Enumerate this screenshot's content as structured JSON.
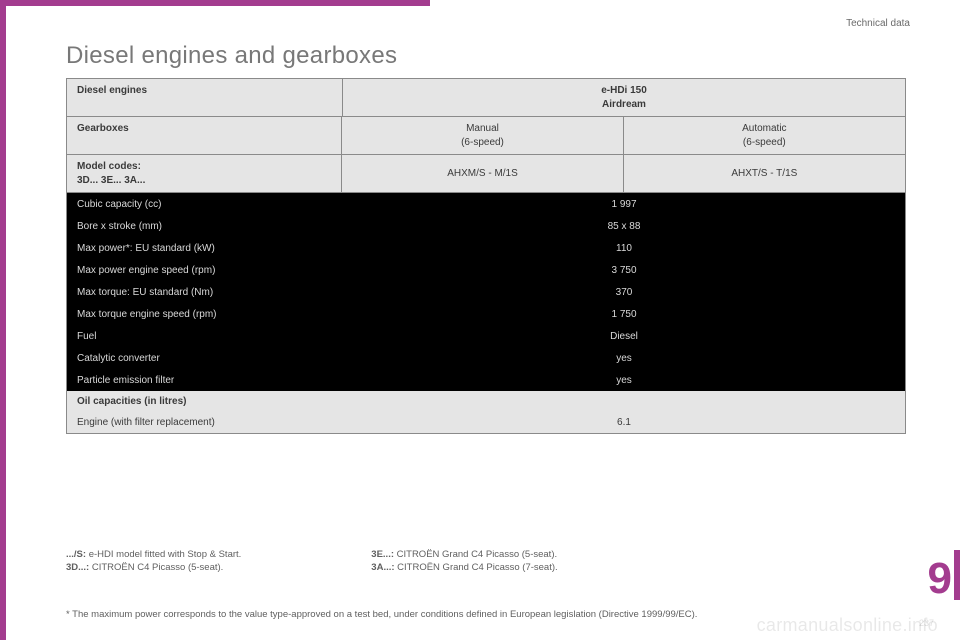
{
  "section_label": "Technical data",
  "title": "Diesel engines and gearboxes",
  "header": {
    "col1": "Diesel engines",
    "engine": "e-HDi 150",
    "engine_sub": "Airdream",
    "gearboxes": "Gearboxes",
    "gb_manual": "Manual",
    "gb_manual_sub": "(6-speed)",
    "gb_auto": "Automatic",
    "gb_auto_sub": "(6-speed)",
    "models_label": "Model codes",
    "models_sub": "3D... 3E... 3A...",
    "code_manual": "AHXM/S - M/1S",
    "code_auto": "AHXT/S - T/1S"
  },
  "rows": [
    {
      "label": "Cubic capacity (cc)",
      "value": "1 997"
    },
    {
      "label": "Bore x stroke (mm)",
      "value": "85 x 88"
    },
    {
      "label": "Max power*: EU standard (kW)",
      "value": "110"
    },
    {
      "label": "Max power engine speed (rpm)",
      "value": "3 750"
    },
    {
      "label": "Max torque: EU standard (Nm)",
      "value": "370"
    },
    {
      "label": "Max torque engine speed (rpm)",
      "value": "1 750"
    },
    {
      "label": "Fuel",
      "value": "Diesel"
    },
    {
      "label": "Catalytic converter",
      "value": "yes"
    },
    {
      "label": "Particle emission filter",
      "value": "yes"
    }
  ],
  "footer": {
    "oil_label": "Oil capacities (in litres)",
    "engine_label": "Engine (with filter replacement)",
    "engine_value": "6.1"
  },
  "notes": {
    "left1_b": ".../S:",
    "left1": " e-HDI model fitted with Stop & Start.",
    "left2_b": "3D...:",
    "left2": " CITROËN C4 Picasso (5-seat).",
    "right1_b": "3E...:",
    "right1": " CITROËN Grand C4 Picasso (5-seat).",
    "right2_b": "3A...:",
    "right2": " CITROËN Grand C4 Picasso (7-seat)."
  },
  "footnote": "* The maximum power corresponds to the value type-approved on a test bed, under conditions defined in European legislation (Directive 1999/99/EC).",
  "chapter": "9",
  "pagenum": "237",
  "watermark": "carmanualsonline.info",
  "colors": {
    "accent": "#a33c8f",
    "header_bg": "#e5e5e5",
    "body_bg": "#000000",
    "body_text": "#d9d9d9",
    "border": "#8a8a8a"
  }
}
